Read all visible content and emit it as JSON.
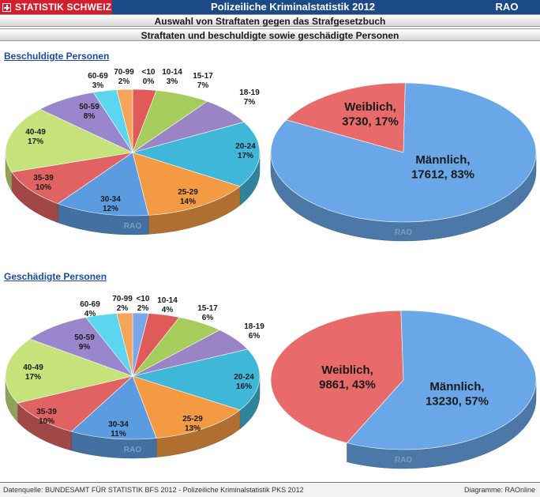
{
  "header": {
    "brand": "STATISTIK SCHWEIZ",
    "title": "Polizeiliche Kriminalstatistik 2012",
    "rao": "RAO",
    "subtitle1": "Auswahl von Straftaten gegen das Strafgesetzbuch",
    "subtitle2": "Straftaten und beschuldigte sowie geschädigte Personen"
  },
  "sections": {
    "top": "Beschuldigte Personen",
    "bottom": "Geschädigte Personen"
  },
  "watermark": "RAO",
  "footer": {
    "source": "Datenquelle: BUNDESAMT FÜR STATISTIK BFS 2012 - Polizeiliche Kriminalstatistik PKS 2012",
    "credit": "Diagramme: RAOnline"
  },
  "chart_data": [
    {
      "type": "pie",
      "group": "Beschuldigte Personen",
      "dimension": "age",
      "slices": [
        {
          "label": "<10",
          "value": 0,
          "pct": "0%",
          "color": "#e8a5a5"
        },
        {
          "label": "10-14",
          "value": 3,
          "pct": "3%",
          "color": "#e05a5a"
        },
        {
          "label": "15-17",
          "value": 7,
          "pct": "7%",
          "color": "#a6cc5c"
        },
        {
          "label": "18-19",
          "value": 7,
          "pct": "7%",
          "color": "#9b84c6"
        },
        {
          "label": "20-24",
          "value": 17,
          "pct": "17%",
          "color": "#3fb7d9"
        },
        {
          "label": "25-29",
          "value": 14,
          "pct": "14%",
          "color": "#f39a43"
        },
        {
          "label": "30-34",
          "value": 12,
          "pct": "12%",
          "color": "#5b9be0"
        },
        {
          "label": "35-39",
          "value": 10,
          "pct": "10%",
          "color": "#e06262"
        },
        {
          "label": "40-49",
          "value": 17,
          "pct": "17%",
          "color": "#c6e27a"
        },
        {
          "label": "50-59",
          "value": 8,
          "pct": "8%",
          "color": "#9a86cc"
        },
        {
          "label": "60-69",
          "value": 3,
          "pct": "3%",
          "color": "#5cd6f0"
        },
        {
          "label": "70-99",
          "value": 2,
          "pct": "2%",
          "color": "#f5a55a"
        }
      ]
    },
    {
      "type": "pie",
      "group": "Beschuldigte Personen",
      "dimension": "sex",
      "slices": [
        {
          "label": "Weiblich",
          "value": 3730,
          "pct": "17%",
          "color": "#e86a6a"
        },
        {
          "label": "Männlich",
          "value": 17612,
          "pct": "83%",
          "color": "#6aa7e8"
        }
      ]
    },
    {
      "type": "pie",
      "group": "Geschädigte Personen",
      "dimension": "age",
      "slices": [
        {
          "label": "<10",
          "value": 2,
          "pct": "2%",
          "color": "#7aa8e6"
        },
        {
          "label": "10-14",
          "value": 4,
          "pct": "4%",
          "color": "#e05a5a"
        },
        {
          "label": "15-17",
          "value": 6,
          "pct": "6%",
          "color": "#a6cc5c"
        },
        {
          "label": "18-19",
          "value": 6,
          "pct": "6%",
          "color": "#9b84c6"
        },
        {
          "label": "20-24",
          "value": 16,
          "pct": "16%",
          "color": "#3fb7d9"
        },
        {
          "label": "25-29",
          "value": 13,
          "pct": "13%",
          "color": "#f39a43"
        },
        {
          "label": "30-34",
          "value": 11,
          "pct": "11%",
          "color": "#5b9be0"
        },
        {
          "label": "35-39",
          "value": 10,
          "pct": "10%",
          "color": "#e06262"
        },
        {
          "label": "40-49",
          "value": 17,
          "pct": "17%",
          "color": "#c6e27a"
        },
        {
          "label": "50-59",
          "value": 9,
          "pct": "9%",
          "color": "#9a86cc"
        },
        {
          "label": "60-69",
          "value": 4,
          "pct": "4%",
          "color": "#5cd6f0"
        },
        {
          "label": "70-99",
          "value": 2,
          "pct": "2%",
          "color": "#f5a55a"
        }
      ]
    },
    {
      "type": "pie",
      "group": "Geschädigte Personen",
      "dimension": "sex",
      "slices": [
        {
          "label": "Weiblich",
          "value": 9861,
          "pct": "43%",
          "color": "#e86a6a"
        },
        {
          "label": "Männlich",
          "value": 13230,
          "pct": "57%",
          "color": "#6aa7e8"
        }
      ]
    }
  ]
}
